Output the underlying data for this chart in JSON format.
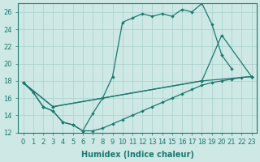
{
  "xlabel": "Humidex (Indice chaleur)",
  "background_color": "#cde8e5",
  "grid_color": "#a8d0cc",
  "line_color": "#1a7a6e",
  "xlim": [
    -0.5,
    23.5
  ],
  "ylim": [
    12,
    27
  ],
  "xticks": [
    0,
    1,
    2,
    3,
    4,
    5,
    6,
    7,
    8,
    9,
    10,
    11,
    12,
    13,
    14,
    15,
    16,
    17,
    18,
    19,
    20,
    21,
    22,
    23
  ],
  "yticks": [
    12,
    14,
    16,
    18,
    20,
    22,
    24,
    26
  ],
  "line_bottom": {
    "x": [
      0,
      1,
      2,
      3,
      4,
      5,
      6,
      7,
      8,
      9,
      10,
      11,
      12,
      13,
      14,
      15,
      16,
      17,
      18,
      19,
      20,
      21,
      22,
      23
    ],
    "y": [
      17.8,
      16.7,
      15.0,
      14.5,
      13.2,
      12.9,
      12.2,
      12.2,
      12.5,
      13.0,
      13.5,
      14.0,
      14.5,
      15.0,
      15.5,
      16.0,
      16.5,
      17.0,
      17.5,
      17.8,
      18.0,
      18.2,
      18.4,
      18.5
    ]
  },
  "line_top": {
    "x": [
      0,
      1,
      2,
      3,
      4,
      5,
      6,
      7,
      8,
      9,
      10,
      11,
      12,
      13,
      14,
      15,
      16,
      17,
      18,
      19,
      20,
      21,
      22,
      23
    ],
    "y": [
      17.8,
      16.7,
      15.0,
      14.5,
      13.2,
      12.9,
      12.2,
      14.2,
      16.0,
      18.5,
      24.8,
      25.3,
      25.8,
      25.5,
      25.8,
      25.5,
      26.3,
      26.0,
      27.0,
      24.6,
      21.0,
      19.4,
      null,
      18.5
    ]
  },
  "line_diag1": {
    "x": [
      0,
      3,
      18,
      20,
      23
    ],
    "y": [
      17.8,
      15.0,
      18.0,
      23.3,
      18.5
    ]
  },
  "line_diag2": {
    "x": [
      0,
      3,
      18,
      23
    ],
    "y": [
      17.8,
      15.0,
      18.0,
      18.5
    ]
  }
}
